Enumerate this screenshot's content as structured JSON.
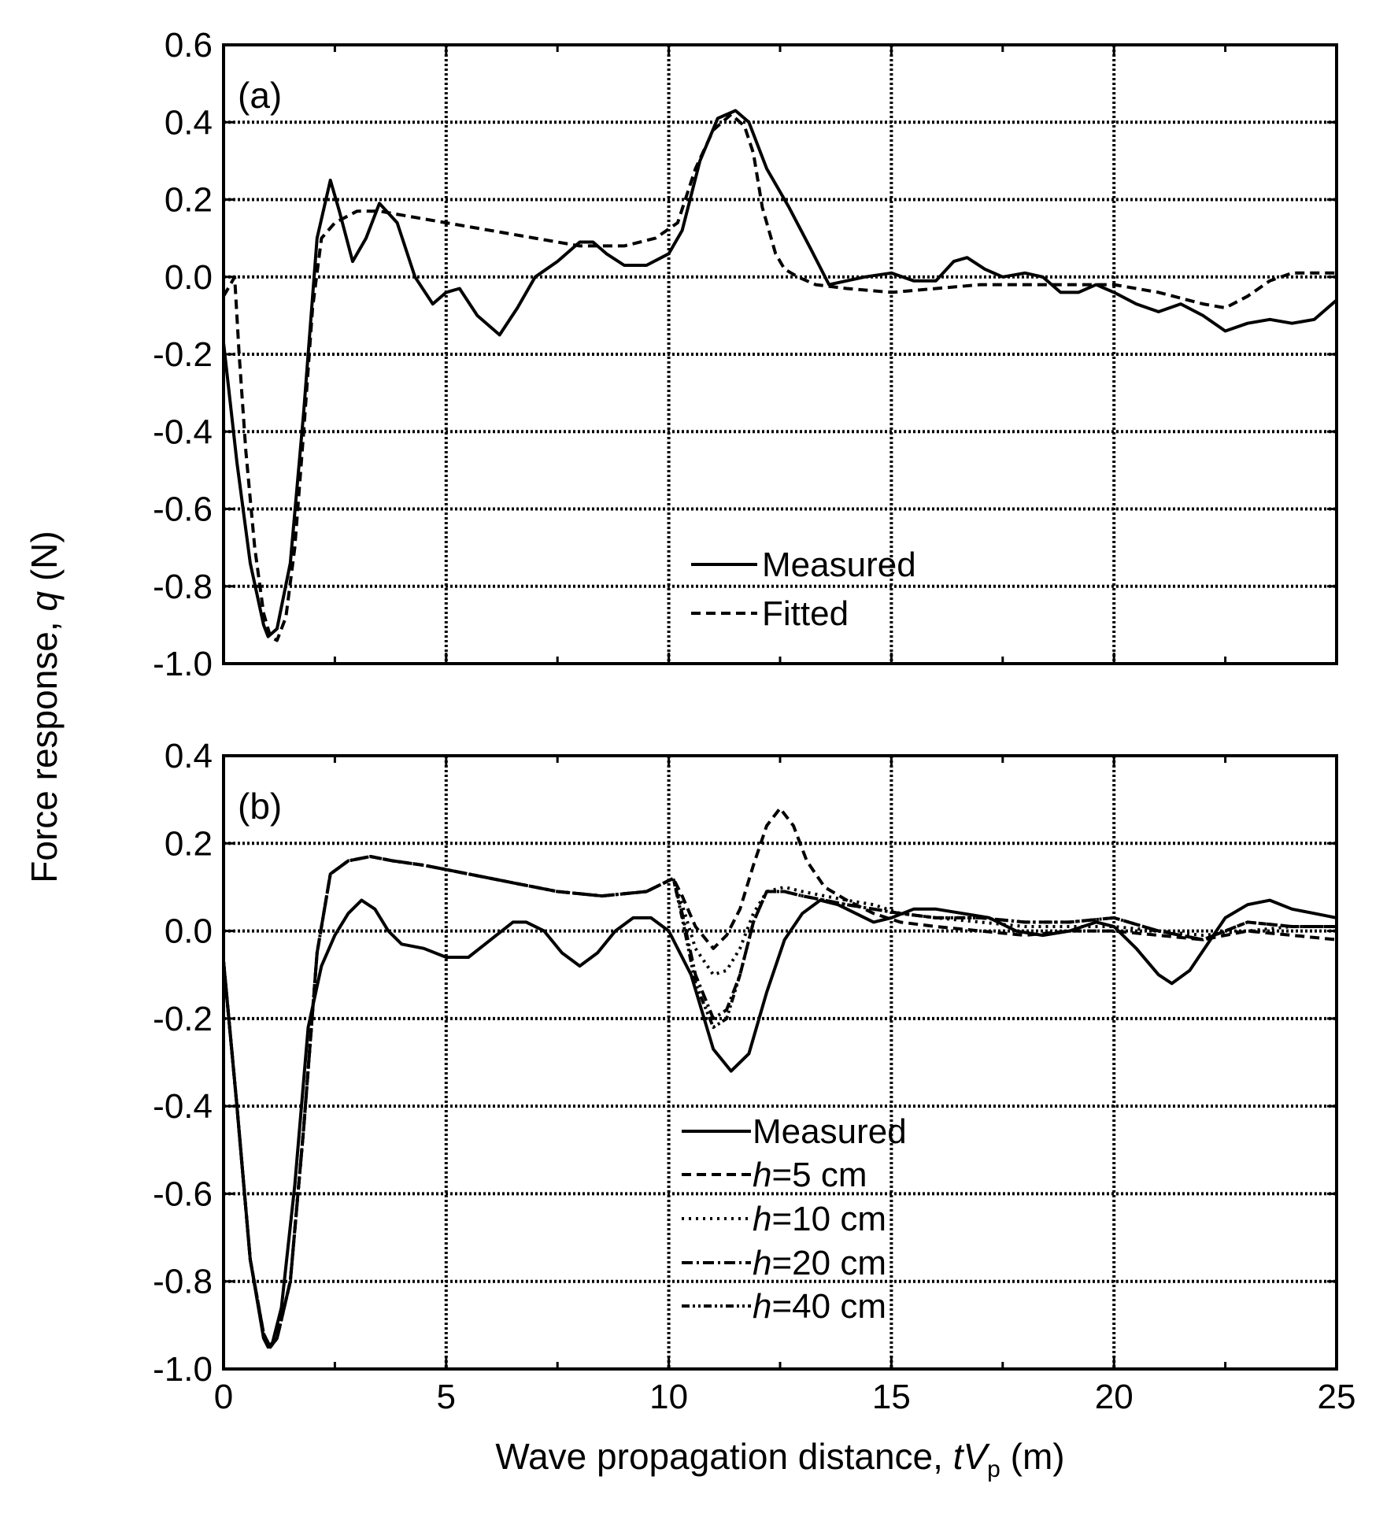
{
  "x_axis": {
    "label_main": "Wave propagation distance, ",
    "label_t": "t",
    "label_V": "V",
    "label_sub": "p",
    "label_unit": " (m)",
    "tick_labels": [
      "0",
      "5",
      "10",
      "15",
      "20",
      "25"
    ]
  },
  "y_axis": {
    "label_main": "Force response, ",
    "label_q": "q",
    "label_unit": " (N)"
  },
  "legend_a": {
    "measured": "Measured",
    "fitted": "Fitted"
  },
  "legend_b": {
    "measured": "Measured",
    "h_prefix": "h",
    "h5": "=5 cm",
    "h10": "=10 cm",
    "h20": "=20 cm",
    "h40": "=40 cm"
  },
  "chart_data": [
    {
      "panel": "(a)",
      "type": "line",
      "xlim": [
        0,
        25
      ],
      "ylim": [
        -1.0,
        0.6
      ],
      "xticks": [
        0,
        5,
        10,
        15,
        20,
        25
      ],
      "yticks": [
        -1.0,
        -0.8,
        -0.6,
        -0.4,
        -0.2,
        0.0,
        0.2,
        0.4,
        0.6
      ],
      "ytick_labels": [
        "-1.0",
        "-0.8",
        "-0.6",
        "-0.4",
        "-0.2",
        "0.0",
        "0.2",
        "0.4",
        "0.6"
      ],
      "grid": "dotted",
      "legend_placement": "lower-center",
      "series": [
        {
          "name": "Measured",
          "style": "solid",
          "x": [
            0,
            0.3,
            0.6,
            0.9,
            1.0,
            1.2,
            1.5,
            1.8,
            2.1,
            2.4,
            2.6,
            2.9,
            3.2,
            3.5,
            3.9,
            4.3,
            4.7,
            5.0,
            5.3,
            5.7,
            6.2,
            6.6,
            7.0,
            7.5,
            8.0,
            8.3,
            8.6,
            9.0,
            9.5,
            10.0,
            10.3,
            10.7,
            11.1,
            11.5,
            11.8,
            12.2,
            12.7,
            13.2,
            13.6,
            14.0,
            14.4,
            15.0,
            15.5,
            16.0,
            16.4,
            16.7,
            17.1,
            17.5,
            18.0,
            18.4,
            18.8,
            19.2,
            19.6,
            20.0,
            20.5,
            21.0,
            21.5,
            22.0,
            22.5,
            23.0,
            23.5,
            24.0,
            24.5,
            25.0
          ],
          "y": [
            -0.17,
            -0.48,
            -0.74,
            -0.9,
            -0.93,
            -0.91,
            -0.74,
            -0.35,
            0.1,
            0.25,
            0.17,
            0.04,
            0.1,
            0.19,
            0.14,
            0.0,
            -0.07,
            -0.04,
            -0.03,
            -0.1,
            -0.15,
            -0.08,
            0.0,
            0.04,
            0.09,
            0.09,
            0.06,
            0.03,
            0.03,
            0.06,
            0.12,
            0.3,
            0.41,
            0.43,
            0.4,
            0.28,
            0.18,
            0.07,
            -0.02,
            -0.01,
            0.0,
            0.01,
            -0.01,
            -0.01,
            0.04,
            0.05,
            0.02,
            0.0,
            0.01,
            0.0,
            -0.04,
            -0.04,
            -0.02,
            -0.04,
            -0.07,
            -0.09,
            -0.07,
            -0.1,
            -0.14,
            -0.12,
            -0.11,
            -0.12,
            -0.11,
            -0.06
          ]
        },
        {
          "name": "Fitted",
          "style": "dashed",
          "x": [
            0,
            0.1,
            0.2,
            0.25,
            0.35,
            0.5,
            0.7,
            0.9,
            1.05,
            1.2,
            1.4,
            1.6,
            1.8,
            2.0,
            2.2,
            2.5,
            3.0,
            3.5,
            4.0,
            5.0,
            6.0,
            7.0,
            8.0,
            9.0,
            9.7,
            10.2,
            10.6,
            11.0,
            11.4,
            11.7,
            11.9,
            12.1,
            12.4,
            12.6,
            12.9,
            13.3,
            14.0,
            15.0,
            16.0,
            17.0,
            18.0,
            19.0,
            20.0,
            21.0,
            22.0,
            22.5,
            23.0,
            23.5,
            24.0,
            25.0
          ],
          "y": [
            -0.05,
            -0.03,
            -0.01,
            0.0,
            -0.2,
            -0.45,
            -0.7,
            -0.87,
            -0.93,
            -0.94,
            -0.88,
            -0.7,
            -0.4,
            -0.08,
            0.1,
            0.14,
            0.17,
            0.17,
            0.16,
            0.14,
            0.12,
            0.1,
            0.08,
            0.08,
            0.1,
            0.14,
            0.28,
            0.38,
            0.42,
            0.39,
            0.32,
            0.18,
            0.06,
            0.02,
            0.0,
            -0.02,
            -0.03,
            -0.04,
            -0.03,
            -0.02,
            -0.02,
            -0.02,
            -0.02,
            -0.04,
            -0.07,
            -0.08,
            -0.05,
            -0.01,
            0.01,
            0.01
          ]
        }
      ]
    },
    {
      "panel": "(b)",
      "type": "line",
      "xlim": [
        0,
        25
      ],
      "ylim": [
        -1.0,
        0.4
      ],
      "xticks": [
        0,
        5,
        10,
        15,
        20,
        25
      ],
      "yticks": [
        -1.0,
        -0.8,
        -0.6,
        -0.4,
        -0.2,
        0.0,
        0.2,
        0.4
      ],
      "ytick_labels": [
        "-1.0",
        "-0.8",
        "-0.6",
        "-0.4",
        "-0.2",
        "0.0",
        "0.2",
        "0.4"
      ],
      "grid": "dotted",
      "legend_placement": "lower-center",
      "series": [
        {
          "name": "Measured",
          "style": "solid",
          "x": [
            0,
            0.3,
            0.6,
            0.9,
            1.0,
            1.1,
            1.3,
            1.6,
            1.9,
            2.2,
            2.5,
            2.8,
            3.1,
            3.4,
            3.7,
            4.0,
            4.5,
            5.0,
            5.5,
            6.0,
            6.5,
            6.8,
            7.2,
            7.6,
            8.0,
            8.4,
            8.8,
            9.2,
            9.6,
            10.0,
            10.5,
            11.0,
            11.4,
            11.8,
            12.2,
            12.6,
            13.0,
            13.4,
            13.8,
            14.2,
            14.6,
            15.0,
            15.5,
            16.0,
            16.6,
            17.2,
            17.8,
            18.4,
            19.0,
            19.6,
            20.0,
            20.5,
            21.0,
            21.3,
            21.7,
            22.1,
            22.5,
            23.0,
            23.5,
            24.0,
            24.5,
            25.0
          ],
          "y": [
            -0.07,
            -0.4,
            -0.75,
            -0.93,
            -0.95,
            -0.94,
            -0.86,
            -0.58,
            -0.22,
            -0.08,
            -0.01,
            0.04,
            0.07,
            0.05,
            0.0,
            -0.03,
            -0.04,
            -0.06,
            -0.06,
            -0.02,
            0.02,
            0.02,
            0.0,
            -0.05,
            -0.08,
            -0.05,
            0.0,
            0.03,
            0.03,
            0.0,
            -0.1,
            -0.27,
            -0.32,
            -0.28,
            -0.14,
            -0.02,
            0.04,
            0.07,
            0.06,
            0.04,
            0.02,
            0.03,
            0.05,
            0.05,
            0.04,
            0.03,
            0.0,
            -0.01,
            0.0,
            0.02,
            0.01,
            -0.04,
            -0.1,
            -0.12,
            -0.09,
            -0.03,
            0.03,
            0.06,
            0.07,
            0.05,
            0.04,
            0.03
          ]
        },
        {
          "name": "h=5 cm",
          "style": "dashed",
          "x": [
            0,
            0.3,
            0.6,
            0.9,
            1.05,
            1.2,
            1.5,
            1.8,
            2.1,
            2.4,
            2.8,
            3.3,
            3.8,
            4.5,
            5.5,
            6.5,
            7.5,
            8.5,
            9.5,
            9.9,
            10.1,
            10.3,
            10.6,
            11.0,
            11.3,
            11.6,
            11.9,
            12.2,
            12.5,
            12.8,
            13.1,
            13.5,
            14.0,
            14.6,
            15.2,
            16.0,
            17.0,
            18.0,
            19.0,
            20.0,
            21.0,
            22.0,
            23.0,
            24.0,
            25.0
          ],
          "y": [
            -0.07,
            -0.4,
            -0.75,
            -0.92,
            -0.95,
            -0.93,
            -0.8,
            -0.45,
            -0.05,
            0.13,
            0.16,
            0.17,
            0.16,
            0.15,
            0.13,
            0.11,
            0.09,
            0.08,
            0.09,
            0.11,
            0.12,
            0.08,
            0.01,
            -0.04,
            -0.01,
            0.05,
            0.15,
            0.24,
            0.28,
            0.24,
            0.16,
            0.1,
            0.07,
            0.04,
            0.02,
            0.01,
            0.0,
            -0.01,
            0.0,
            0.0,
            -0.01,
            -0.02,
            0.0,
            -0.01,
            -0.02
          ]
        },
        {
          "name": "h=10 cm",
          "style": "dotted",
          "x": [
            0,
            0.3,
            0.6,
            0.9,
            1.05,
            1.2,
            1.5,
            1.8,
            2.1,
            2.4,
            2.8,
            3.3,
            3.8,
            4.5,
            5.5,
            6.5,
            7.5,
            8.5,
            9.5,
            9.9,
            10.1,
            10.3,
            10.6,
            11.0,
            11.3,
            11.6,
            11.9,
            12.2,
            12.6,
            13.0,
            13.5,
            14.0,
            14.6,
            15.2,
            16.0,
            17.0,
            18.0,
            19.0,
            20.0,
            21.0,
            22.0,
            23.0,
            24.0,
            25.0
          ],
          "y": [
            -0.07,
            -0.4,
            -0.75,
            -0.92,
            -0.95,
            -0.93,
            -0.8,
            -0.45,
            -0.05,
            0.13,
            0.16,
            0.17,
            0.16,
            0.15,
            0.13,
            0.11,
            0.09,
            0.08,
            0.09,
            0.11,
            0.12,
            0.06,
            -0.04,
            -0.1,
            -0.09,
            -0.04,
            0.04,
            0.09,
            0.1,
            0.09,
            0.08,
            0.07,
            0.06,
            0.04,
            0.03,
            0.02,
            0.01,
            0.01,
            0.01,
            0.0,
            -0.01,
            0.0,
            0.01,
            0.01
          ]
        },
        {
          "name": "h=20 cm",
          "style": "dash-dot",
          "x": [
            0,
            0.3,
            0.6,
            0.9,
            1.05,
            1.2,
            1.5,
            1.8,
            2.1,
            2.4,
            2.8,
            3.3,
            3.8,
            4.5,
            5.5,
            6.5,
            7.5,
            8.5,
            9.5,
            9.9,
            10.1,
            10.3,
            10.6,
            11.0,
            11.3,
            11.6,
            11.9,
            12.2,
            12.6,
            13.0,
            13.5,
            14.0,
            14.6,
            15.2,
            16.0,
            17.0,
            18.0,
            19.0,
            20.0,
            21.0,
            22.0,
            23.0,
            24.0,
            25.0
          ],
          "y": [
            -0.07,
            -0.4,
            -0.75,
            -0.92,
            -0.95,
            -0.93,
            -0.8,
            -0.45,
            -0.05,
            0.13,
            0.16,
            0.17,
            0.16,
            0.15,
            0.13,
            0.11,
            0.09,
            0.08,
            0.09,
            0.11,
            0.12,
            0.04,
            -0.1,
            -0.2,
            -0.18,
            -0.1,
            0.02,
            0.09,
            0.09,
            0.08,
            0.07,
            0.06,
            0.05,
            0.04,
            0.03,
            0.03,
            0.02,
            0.02,
            0.03,
            0.0,
            -0.02,
            0.02,
            0.01,
            0.01
          ]
        },
        {
          "name": "h=40 cm",
          "style": "dash-dot-dot",
          "x": [
            0,
            0.3,
            0.6,
            0.9,
            1.05,
            1.2,
            1.5,
            1.8,
            2.1,
            2.4,
            2.8,
            3.3,
            3.8,
            4.5,
            5.5,
            6.5,
            7.5,
            8.5,
            9.5,
            9.9,
            10.1,
            10.3,
            10.6,
            11.0,
            11.3,
            11.6,
            11.9,
            12.2,
            12.6,
            13.0,
            13.5,
            14.0,
            14.6,
            15.2,
            16.0,
            17.0,
            18.0,
            19.0,
            20.0,
            21.0,
            22.0,
            23.0,
            24.0,
            25.0
          ],
          "y": [
            -0.07,
            -0.4,
            -0.75,
            -0.92,
            -0.95,
            -0.93,
            -0.8,
            -0.45,
            -0.05,
            0.13,
            0.16,
            0.17,
            0.16,
            0.15,
            0.13,
            0.11,
            0.09,
            0.08,
            0.09,
            0.11,
            0.12,
            0.03,
            -0.12,
            -0.22,
            -0.2,
            -0.1,
            0.02,
            0.09,
            0.09,
            0.08,
            0.07,
            0.06,
            0.05,
            0.04,
            0.03,
            0.03,
            0.02,
            0.02,
            0.03,
            0.0,
            -0.02,
            0.02,
            0.01,
            0.01
          ]
        }
      ]
    }
  ]
}
